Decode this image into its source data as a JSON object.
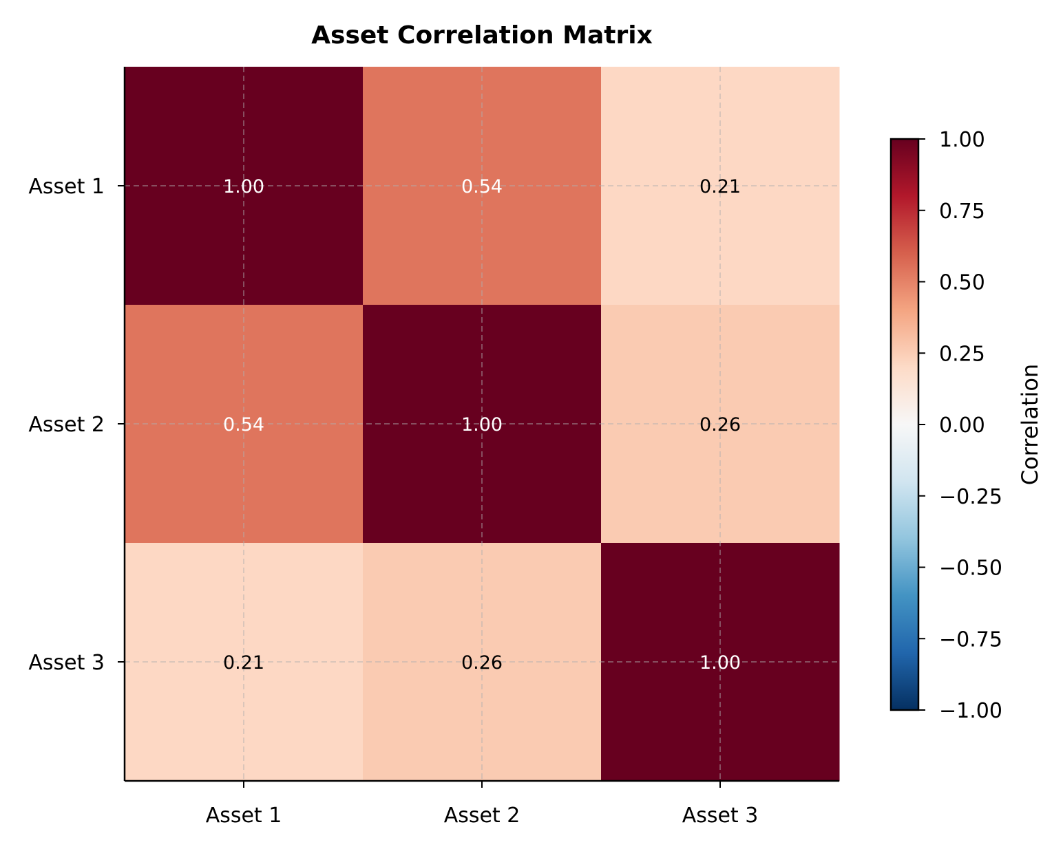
{
  "chart_data": {
    "type": "heatmap",
    "title": "Asset Correlation Matrix",
    "x_categories": [
      "Asset 1",
      "Asset 2",
      "Asset 3"
    ],
    "y_categories": [
      "Asset 1",
      "Asset 2",
      "Asset 3"
    ],
    "values": [
      [
        1.0,
        0.54,
        0.21
      ],
      [
        0.54,
        1.0,
        0.26
      ],
      [
        0.21,
        0.26,
        1.0
      ]
    ],
    "value_labels": [
      [
        "1.00",
        "0.54",
        "0.21"
      ],
      [
        "0.54",
        "1.00",
        "0.26"
      ],
      [
        "0.21",
        "0.26",
        "1.00"
      ]
    ],
    "colormap": "RdBu_r",
    "vmin": -1.0,
    "vmax": 1.0,
    "colorbar": {
      "label": "Correlation",
      "ticks": [
        1.0,
        0.75,
        0.5,
        0.25,
        0.0,
        -0.25,
        -0.5,
        -0.75,
        -1.0
      ],
      "tick_labels": [
        "1.00",
        "0.75",
        "0.50",
        "0.25",
        "0.00",
        "−0.25",
        "−0.50",
        "−0.75",
        "−1.00"
      ]
    },
    "grid": true,
    "grid_style": "dashed"
  }
}
